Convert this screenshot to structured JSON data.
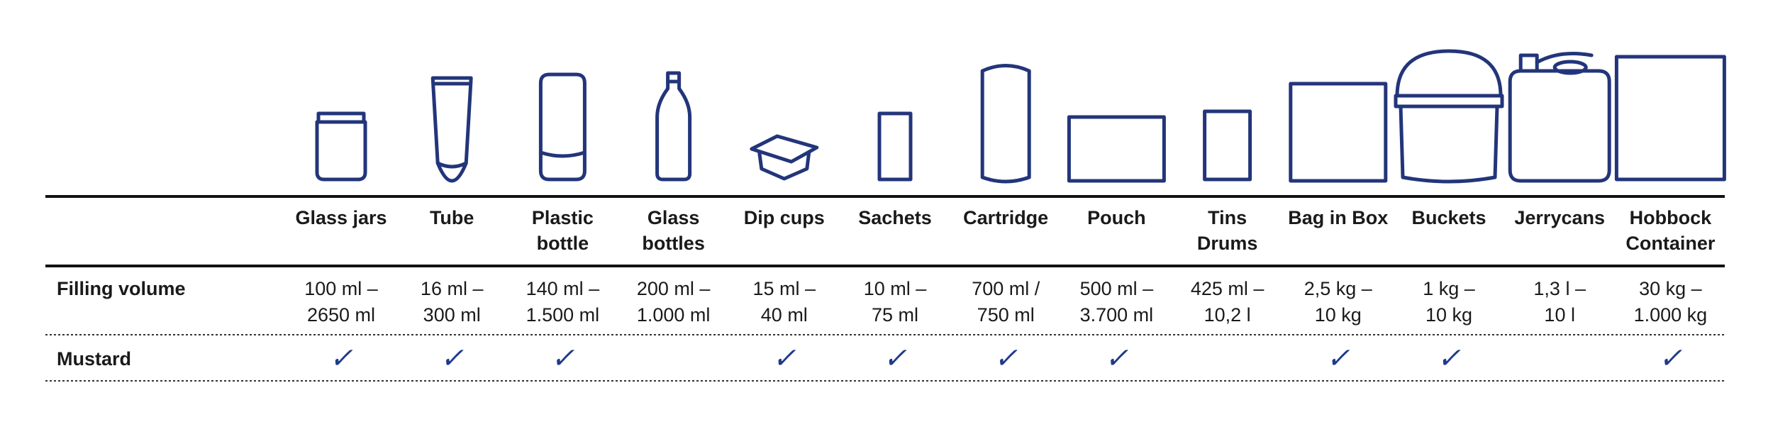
{
  "table": {
    "columns": [
      [
        "Glass jars"
      ],
      [
        "Tube"
      ],
      [
        "Plastic",
        "bottle"
      ],
      [
        "Glass",
        "bottles"
      ],
      [
        "Dip cups"
      ],
      [
        "Sachets"
      ],
      [
        "Cartridge"
      ],
      [
        "Pouch"
      ],
      [
        "Tins",
        "Drums"
      ],
      [
        "Bag in Box"
      ],
      [
        "Buckets"
      ],
      [
        "Jerrycans"
      ],
      [
        "Hobbock",
        "Container"
      ]
    ],
    "rows": [
      {
        "label": "Filling volume",
        "cells": [
          [
            "100 ml –",
            "2650 ml"
          ],
          [
            "16 ml –",
            "300 ml"
          ],
          [
            "140 ml –",
            "1.500 ml"
          ],
          [
            "200 ml –",
            "1.000 ml"
          ],
          [
            "15 ml –",
            "40 ml"
          ],
          [
            "10 ml –",
            "75 ml"
          ],
          [
            "700 ml /",
            "750 ml"
          ],
          [
            "500 ml –",
            "3.700 ml"
          ],
          [
            "425 ml –",
            "10,2 l"
          ],
          [
            "2,5 kg –",
            "10 kg"
          ],
          [
            "1 kg –",
            "10 kg"
          ],
          [
            "1,3 l –",
            "10 l"
          ],
          [
            "30 kg –",
            "1.000 kg"
          ]
        ]
      },
      {
        "label": "Mustard",
        "cells": [
          [
            "✓"
          ],
          [
            "✓"
          ],
          [
            "✓"
          ],
          null,
          [
            "✓"
          ],
          [
            "✓"
          ],
          [
            "✓"
          ],
          [
            "✓"
          ],
          null,
          [
            "✓"
          ],
          [
            "✓"
          ],
          null,
          [
            "✓"
          ]
        ]
      }
    ]
  }
}
